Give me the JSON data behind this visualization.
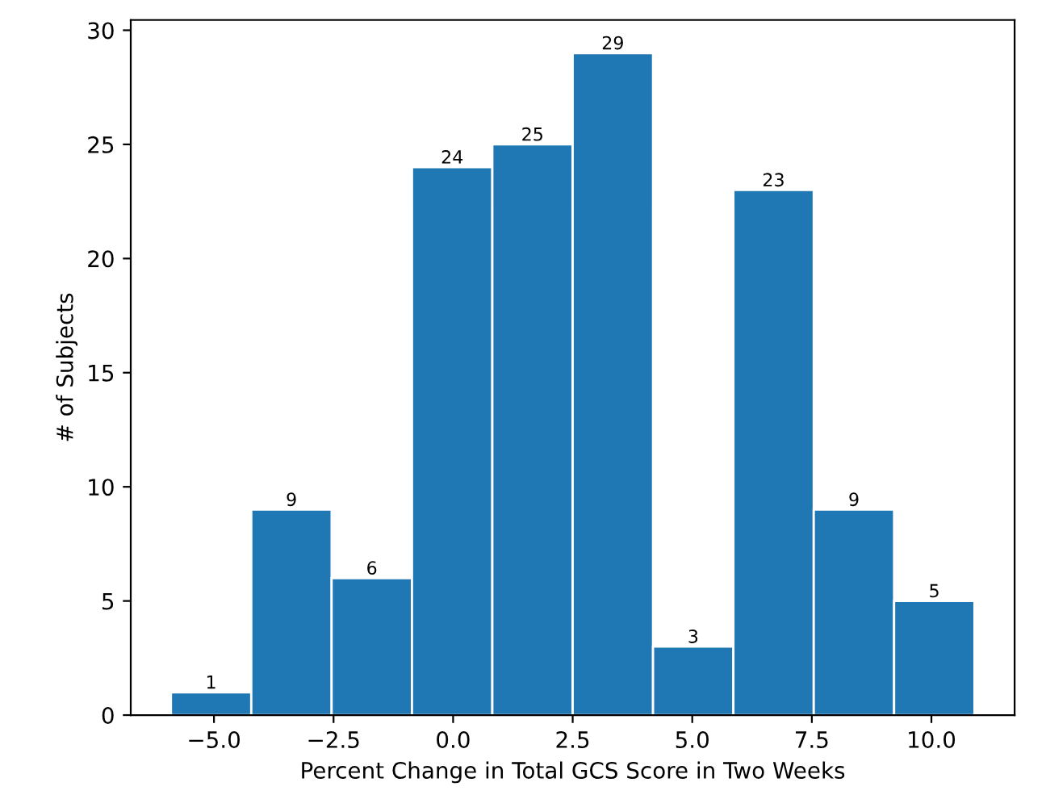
{
  "chart_data": {
    "type": "histogram",
    "xlabel": "Percent Change in Total GCS Score in Two Weeks",
    "ylabel": "# of Subjects",
    "bins": [
      -5.9,
      -4.22,
      -2.54,
      -0.86,
      0.82,
      2.5,
      4.18,
      5.86,
      7.54,
      9.22,
      10.9
    ],
    "values": [
      1,
      9,
      6,
      24,
      25,
      29,
      3,
      23,
      9,
      5
    ],
    "color": "#1f77b4",
    "data_labels": true,
    "grid": false,
    "xlim": [
      -6.74,
      11.74
    ],
    "xticks": [
      {
        "value": -5,
        "label": "−5.0"
      },
      {
        "value": -2.5,
        "label": "−2.5"
      },
      {
        "value": 0,
        "label": "0.0"
      },
      {
        "value": 2.5,
        "label": "2.5"
      },
      {
        "value": 5,
        "label": "5.0"
      },
      {
        "value": 7.5,
        "label": "7.5"
      },
      {
        "value": 10,
        "label": "10.0"
      }
    ],
    "ylim": [
      0,
      30.45
    ],
    "yticks": [
      0,
      5,
      10,
      15,
      20,
      25,
      30
    ]
  }
}
